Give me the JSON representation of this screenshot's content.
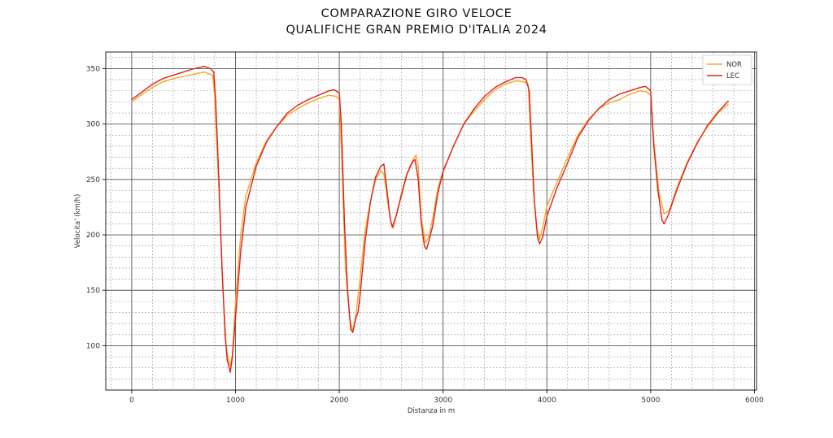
{
  "chart_data": {
    "type": "line",
    "title": "COMPARAZIONE GIRO VELOCE",
    "subtitle": "QUALIFICHE GRAN PREMIO D'ITALIA 2024",
    "xlabel": "Distanza in m",
    "ylabel": "Velocita' (km/h)",
    "xlim": [
      -250,
      6020
    ],
    "ylim": [
      60,
      365
    ],
    "xticks": [
      0,
      1000,
      2000,
      3000,
      4000,
      5000,
      6000
    ],
    "yticks": [
      100,
      150,
      200,
      250,
      300,
      350
    ],
    "grid": true,
    "legend_position": "top-right",
    "series": [
      {
        "name": "NOR",
        "color": "#f5a623",
        "points": [
          [
            0,
            320
          ],
          [
            100,
            327
          ],
          [
            200,
            333
          ],
          [
            300,
            338
          ],
          [
            400,
            341
          ],
          [
            500,
            343
          ],
          [
            600,
            345
          ],
          [
            700,
            347
          ],
          [
            780,
            344
          ],
          [
            800,
            325
          ],
          [
            840,
            240
          ],
          [
            880,
            150
          ],
          [
            910,
            100
          ],
          [
            930,
            88
          ],
          [
            950,
            82
          ],
          [
            970,
            92
          ],
          [
            1000,
            140
          ],
          [
            1050,
            200
          ],
          [
            1100,
            235
          ],
          [
            1200,
            265
          ],
          [
            1300,
            285
          ],
          [
            1400,
            298
          ],
          [
            1500,
            308
          ],
          [
            1600,
            314
          ],
          [
            1700,
            319
          ],
          [
            1800,
            323
          ],
          [
            1900,
            326
          ],
          [
            1970,
            325
          ],
          [
            2000,
            322
          ],
          [
            2020,
            280
          ],
          [
            2060,
            170
          ],
          [
            2100,
            125
          ],
          [
            2130,
            113
          ],
          [
            2160,
            128
          ],
          [
            2200,
            160
          ],
          [
            2250,
            205
          ],
          [
            2300,
            230
          ],
          [
            2350,
            250
          ],
          [
            2400,
            258
          ],
          [
            2430,
            255
          ],
          [
            2470,
            228
          ],
          [
            2500,
            210
          ],
          [
            2520,
            206
          ],
          [
            2560,
            222
          ],
          [
            2600,
            238
          ],
          [
            2650,
            255
          ],
          [
            2700,
            266
          ],
          [
            2740,
            272
          ],
          [
            2760,
            262
          ],
          [
            2790,
            215
          ],
          [
            2830,
            193
          ],
          [
            2860,
            198
          ],
          [
            2900,
            215
          ],
          [
            2950,
            242
          ],
          [
            3000,
            258
          ],
          [
            3100,
            280
          ],
          [
            3200,
            300
          ],
          [
            3300,
            312
          ],
          [
            3400,
            322
          ],
          [
            3500,
            331
          ],
          [
            3600,
            336
          ],
          [
            3700,
            339
          ],
          [
            3780,
            338
          ],
          [
            3820,
            336
          ],
          [
            3840,
            296
          ],
          [
            3870,
            240
          ],
          [
            3900,
            207
          ],
          [
            3930,
            196
          ],
          [
            3960,
            207
          ],
          [
            4000,
            226
          ],
          [
            4100,
            248
          ],
          [
            4200,
            270
          ],
          [
            4300,
            290
          ],
          [
            4400,
            304
          ],
          [
            4500,
            314
          ],
          [
            4600,
            319
          ],
          [
            4700,
            322
          ],
          [
            4800,
            327
          ],
          [
            4900,
            330
          ],
          [
            4960,
            329
          ],
          [
            5000,
            326
          ],
          [
            5030,
            285
          ],
          [
            5080,
            238
          ],
          [
            5130,
            219
          ],
          [
            5180,
            222
          ],
          [
            5250,
            242
          ],
          [
            5350,
            265
          ],
          [
            5450,
            284
          ],
          [
            5550,
            298
          ],
          [
            5650,
            310
          ],
          [
            5750,
            318
          ]
        ]
      },
      {
        "name": "LEC",
        "color": "#e02020",
        "points": [
          [
            0,
            322
          ],
          [
            100,
            329
          ],
          [
            200,
            336
          ],
          [
            300,
            341
          ],
          [
            400,
            344
          ],
          [
            500,
            347
          ],
          [
            600,
            350
          ],
          [
            700,
            352
          ],
          [
            760,
            350
          ],
          [
            790,
            347
          ],
          [
            810,
            320
          ],
          [
            840,
            250
          ],
          [
            870,
            170
          ],
          [
            900,
            110
          ],
          [
            920,
            87
          ],
          [
            940,
            80
          ],
          [
            950,
            76
          ],
          [
            970,
            90
          ],
          [
            1000,
            125
          ],
          [
            1050,
            185
          ],
          [
            1100,
            225
          ],
          [
            1200,
            262
          ],
          [
            1300,
            284
          ],
          [
            1400,
            298
          ],
          [
            1500,
            310
          ],
          [
            1600,
            317
          ],
          [
            1700,
            322
          ],
          [
            1800,
            326
          ],
          [
            1900,
            330
          ],
          [
            1950,
            331
          ],
          [
            2000,
            328
          ],
          [
            2020,
            300
          ],
          [
            2050,
            210
          ],
          [
            2080,
            150
          ],
          [
            2110,
            115
          ],
          [
            2130,
            112
          ],
          [
            2160,
            125
          ],
          [
            2180,
            130
          ],
          [
            2200,
            145
          ],
          [
            2250,
            195
          ],
          [
            2300,
            230
          ],
          [
            2350,
            252
          ],
          [
            2400,
            262
          ],
          [
            2430,
            264
          ],
          [
            2460,
            240
          ],
          [
            2490,
            215
          ],
          [
            2510,
            207
          ],
          [
            2550,
            218
          ],
          [
            2600,
            236
          ],
          [
            2650,
            254
          ],
          [
            2700,
            265
          ],
          [
            2730,
            268
          ],
          [
            2760,
            250
          ],
          [
            2790,
            210
          ],
          [
            2820,
            190
          ],
          [
            2840,
            187
          ],
          [
            2860,
            193
          ],
          [
            2900,
            208
          ],
          [
            2950,
            238
          ],
          [
            3000,
            257
          ],
          [
            3100,
            280
          ],
          [
            3200,
            300
          ],
          [
            3300,
            314
          ],
          [
            3400,
            325
          ],
          [
            3500,
            333
          ],
          [
            3600,
            338
          ],
          [
            3700,
            342
          ],
          [
            3760,
            342
          ],
          [
            3800,
            340
          ],
          [
            3830,
            330
          ],
          [
            3850,
            290
          ],
          [
            3880,
            230
          ],
          [
            3910,
            198
          ],
          [
            3930,
            192
          ],
          [
            3960,
            198
          ],
          [
            4000,
            217
          ],
          [
            4100,
            243
          ],
          [
            4200,
            265
          ],
          [
            4300,
            288
          ],
          [
            4400,
            303
          ],
          [
            4500,
            314
          ],
          [
            4600,
            322
          ],
          [
            4700,
            327
          ],
          [
            4800,
            330
          ],
          [
            4900,
            333
          ],
          [
            4950,
            334
          ],
          [
            5000,
            330
          ],
          [
            5030,
            280
          ],
          [
            5070,
            240
          ],
          [
            5110,
            213
          ],
          [
            5130,
            210
          ],
          [
            5170,
            218
          ],
          [
            5250,
            240
          ],
          [
            5350,
            264
          ],
          [
            5450,
            283
          ],
          [
            5550,
            299
          ],
          [
            5650,
            311
          ],
          [
            5750,
            321
          ]
        ]
      }
    ]
  }
}
